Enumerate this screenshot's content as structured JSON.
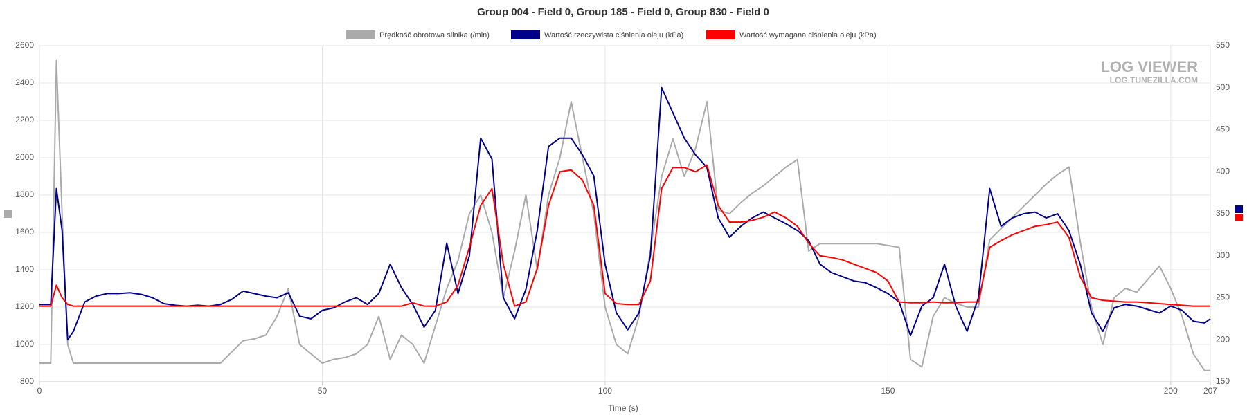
{
  "chart_data": {
    "type": "line",
    "title": "Group 004 - Field 0, Group 185 - Field 0, Group 830 - Field 0",
    "x_label": "Time (s)",
    "watermark": {
      "title": "LOG VIEWER",
      "subtitle": "LOG.TUNEZILLA.COM"
    },
    "xlim": [
      0,
      207
    ],
    "xticks": [
      0,
      50,
      100,
      150,
      200,
      207
    ],
    "ylim": [
      800,
      2600
    ],
    "yticks": [
      800,
      1000,
      1200,
      1400,
      1600,
      1800,
      2000,
      2200,
      2400,
      2600
    ],
    "y2lim": [
      150,
      550
    ],
    "y2ticks": [
      150,
      200,
      250,
      300,
      350,
      400,
      450,
      500,
      550
    ],
    "grid": true,
    "x": [
      0,
      2,
      3,
      4,
      5,
      6,
      8,
      10,
      12,
      14,
      16,
      18,
      20,
      22,
      24,
      26,
      28,
      30,
      32,
      34,
      36,
      38,
      40,
      42,
      44,
      46,
      48,
      50,
      52,
      54,
      56,
      58,
      60,
      62,
      64,
      66,
      68,
      70,
      72,
      74,
      76,
      78,
      80,
      82,
      84,
      86,
      88,
      90,
      92,
      94,
      96,
      98,
      100,
      102,
      104,
      106,
      108,
      110,
      112,
      114,
      116,
      118,
      120,
      122,
      124,
      126,
      128,
      130,
      132,
      134,
      136,
      138,
      140,
      142,
      144,
      146,
      148,
      150,
      152,
      154,
      156,
      158,
      160,
      162,
      164,
      166,
      168,
      170,
      172,
      174,
      176,
      178,
      180,
      182,
      184,
      186,
      188,
      190,
      192,
      194,
      196,
      198,
      200,
      202,
      204,
      206,
      207
    ],
    "series": [
      {
        "name": "Prędkość obrotowa silnika (/min)",
        "color": "#aaaaaa",
        "axis": "y",
        "values": [
          900,
          900,
          2520,
          1700,
          1000,
          900,
          900,
          900,
          900,
          900,
          900,
          900,
          900,
          900,
          900,
          900,
          900,
          900,
          900,
          960,
          1020,
          1030,
          1050,
          1150,
          1300,
          1000,
          950,
          900,
          920,
          930,
          950,
          1000,
          1150,
          920,
          1050,
          1000,
          900,
          1100,
          1300,
          1450,
          1700,
          1800,
          1600,
          1250,
          1500,
          1800,
          1400,
          1800,
          2000,
          2300,
          2000,
          1700,
          1200,
          1000,
          950,
          1150,
          1500,
          1900,
          2100,
          1900,
          2050,
          2300,
          1720,
          1700,
          1760,
          1810,
          1850,
          1900,
          1950,
          1990,
          1500,
          1540,
          1540,
          1540,
          1540,
          1540,
          1540,
          1530,
          1520,
          920,
          880,
          1150,
          1250,
          1220,
          1200,
          1200,
          1560,
          1620,
          1680,
          1740,
          1800,
          1860,
          1910,
          1950,
          1550,
          1200,
          1000,
          1250,
          1300,
          1280,
          1350,
          1420,
          1300,
          1150,
          950,
          860,
          860
        ]
      },
      {
        "name": "Wartość rzeczywista ciśnienia oleju (kPa)",
        "color": "#00008b",
        "axis": "y2",
        "values": [
          242,
          242,
          380,
          330,
          200,
          210,
          245,
          252,
          255,
          255,
          256,
          254,
          250,
          243,
          241,
          240,
          241,
          240,
          242,
          248,
          258,
          255,
          252,
          250,
          256,
          228,
          225,
          235,
          238,
          245,
          250,
          242,
          255,
          290,
          262,
          242,
          215,
          235,
          315,
          255,
          300,
          440,
          415,
          250,
          225,
          260,
          330,
          430,
          440,
          440,
          420,
          395,
          290,
          232,
          212,
          232,
          300,
          500,
          470,
          440,
          420,
          405,
          345,
          322,
          335,
          345,
          352,
          345,
          338,
          330,
          318,
          290,
          280,
          275,
          270,
          268,
          262,
          255,
          245,
          205,
          240,
          250,
          290,
          240,
          210,
          250,
          380,
          335,
          345,
          350,
          352,
          345,
          350,
          330,
          290,
          232,
          210,
          238,
          242,
          240,
          236,
          232,
          240,
          235,
          222,
          220,
          225
        ]
      },
      {
        "name": "Wartość wymagana ciśnienia oleju (kPa)",
        "color": "#ff0000",
        "axis": "y2",
        "values": [
          240,
          240,
          265,
          250,
          242,
          240,
          240,
          240,
          240,
          240,
          240,
          240,
          240,
          240,
          240,
          240,
          240,
          240,
          240,
          240,
          240,
          240,
          240,
          240,
          240,
          240,
          240,
          240,
          240,
          240,
          240,
          240,
          240,
          240,
          240,
          244,
          240,
          240,
          245,
          265,
          310,
          360,
          380,
          290,
          240,
          245,
          285,
          360,
          400,
          402,
          390,
          360,
          255,
          243,
          242,
          242,
          270,
          380,
          405,
          405,
          400,
          408,
          360,
          340,
          340,
          342,
          346,
          352,
          345,
          335,
          315,
          300,
          298,
          295,
          290,
          285,
          280,
          270,
          245,
          244,
          244,
          245,
          244,
          244,
          245,
          245,
          310,
          318,
          325,
          330,
          335,
          337,
          340,
          322,
          275,
          250,
          247,
          246,
          245,
          245,
          244,
          243,
          242,
          241,
          240,
          240,
          240
        ]
      }
    ]
  }
}
